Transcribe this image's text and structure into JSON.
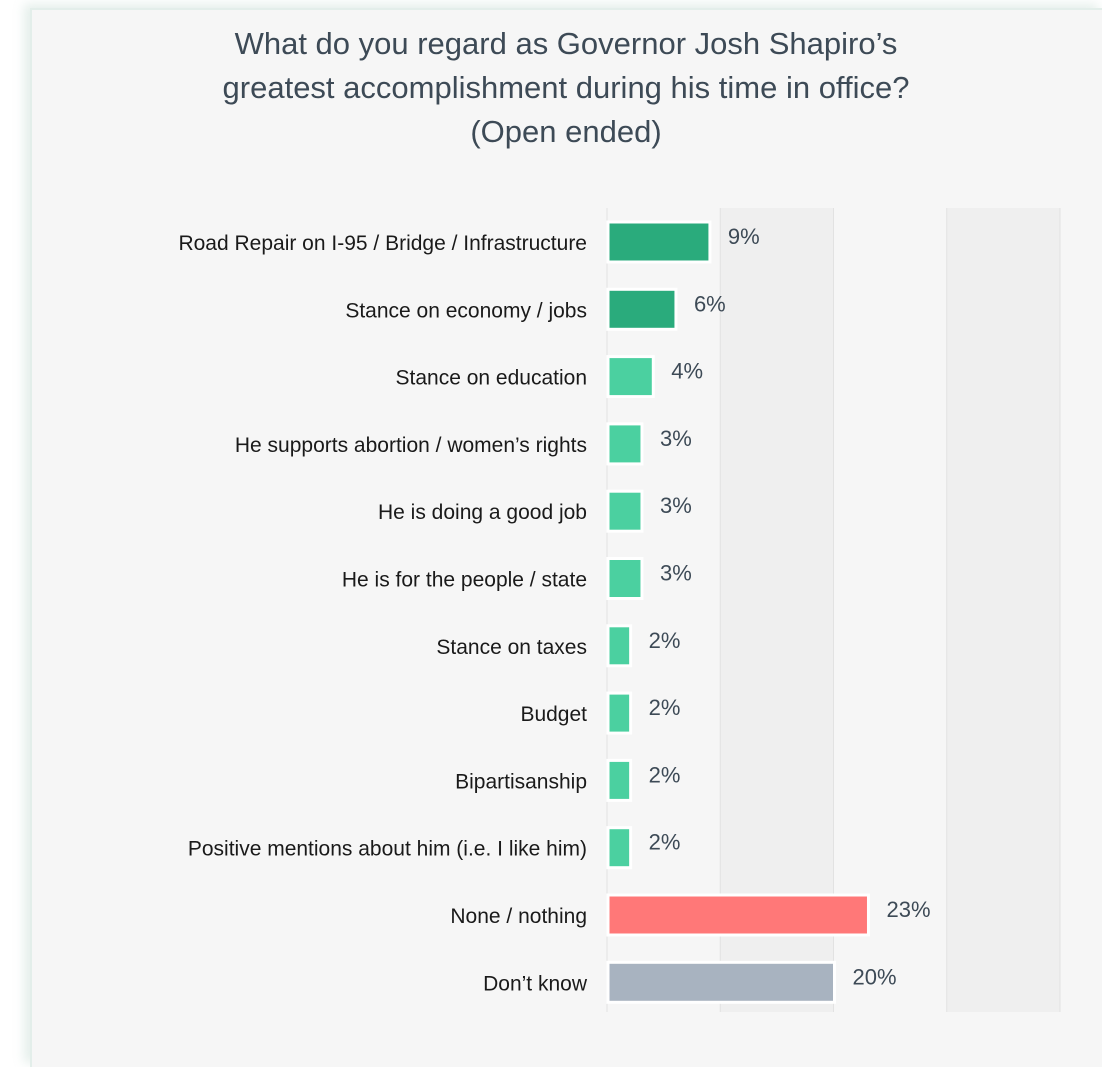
{
  "title_lines": [
    "What do you regard as Governor Josh Shapiro’s",
    "greatest accomplishment during his time in office?",
    "(Open ended)"
  ],
  "colors": {
    "dark_green": "#2aab7c",
    "light_green": "#4bd0a0",
    "red": "#ff7878",
    "gray": "#a8b3c0",
    "plot_band": "#efefef"
  },
  "chart_data": {
    "type": "bar",
    "orientation": "horizontal",
    "title": "What do you regard as Governor Josh Shapiro’s greatest accomplishment during his time in office? (Open ended)",
    "xlim": [
      0,
      40
    ],
    "grid": true,
    "categories": [
      "Road Repair on I-95 / Bridge / Infrastructure",
      "Stance on economy / jobs",
      "Stance on education",
      "He supports abortion / women’s rights",
      "He is doing a good job",
      "He is for the people / state",
      "Stance on taxes",
      "Budget",
      "Bipartisanship",
      "Positive mentions about him (i.e. I like him)",
      "None / nothing",
      "Don’t know"
    ],
    "values": [
      9,
      6,
      4,
      3,
      3,
      3,
      2,
      2,
      2,
      2,
      23,
      20
    ],
    "value_labels": [
      "9%",
      "6%",
      "4%",
      "3%",
      "3%",
      "3%",
      "2%",
      "2%",
      "2%",
      "2%",
      "23%",
      "20%"
    ],
    "bar_colors": [
      "dark_green",
      "dark_green",
      "light_green",
      "light_green",
      "light_green",
      "light_green",
      "light_green",
      "light_green",
      "light_green",
      "light_green",
      "red",
      "gray"
    ]
  }
}
